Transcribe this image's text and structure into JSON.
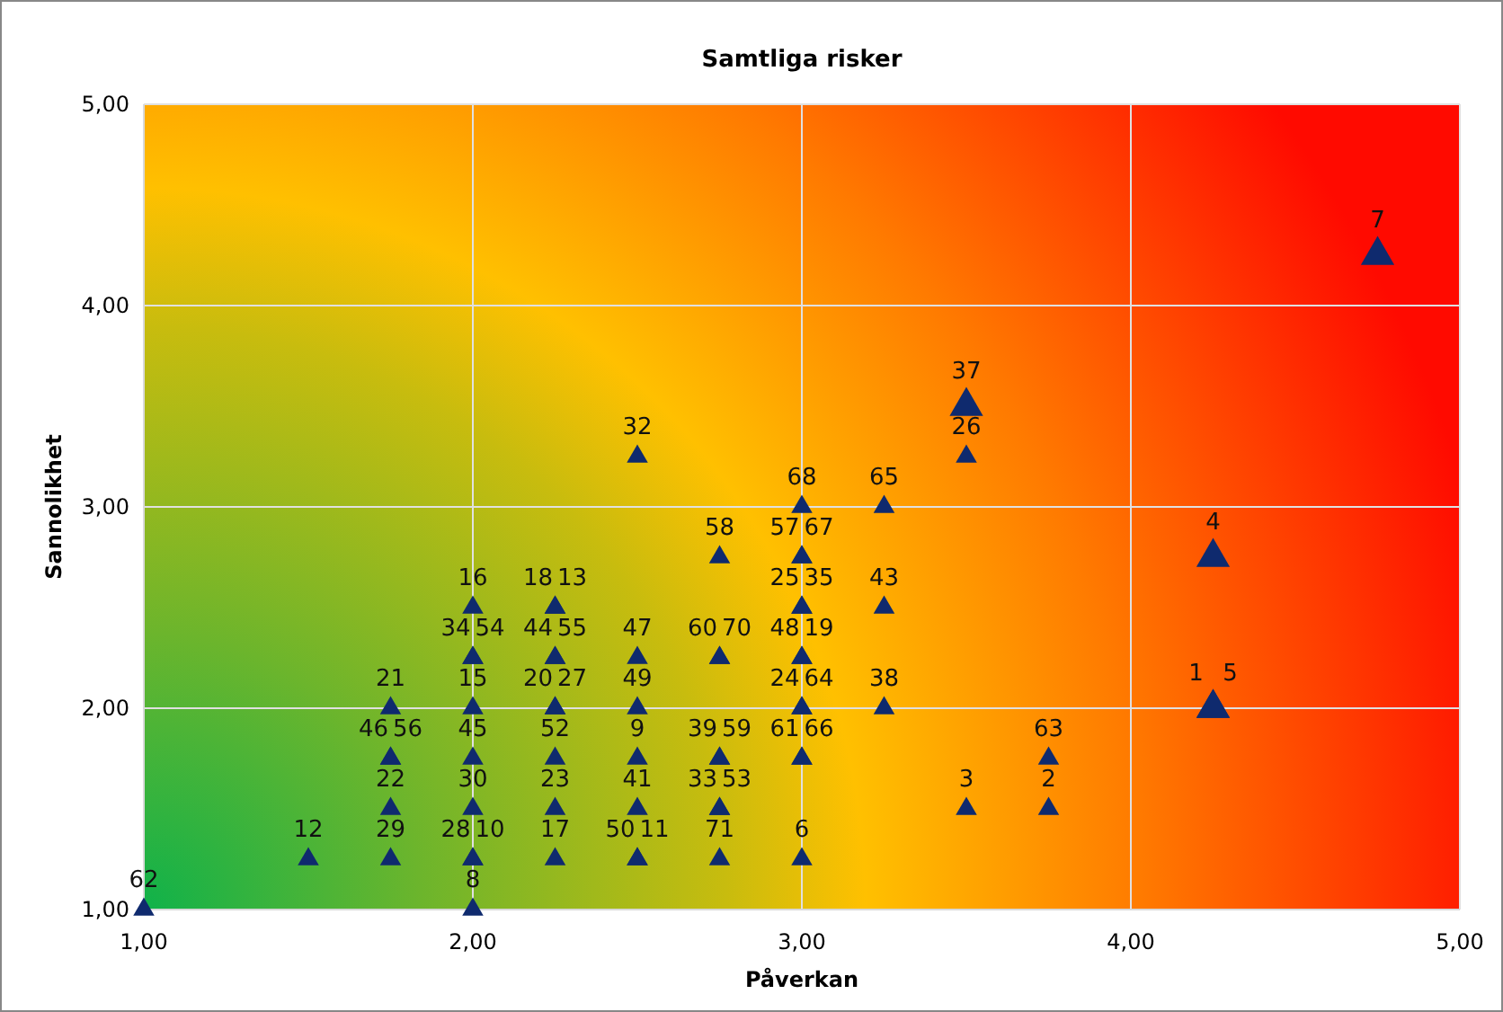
{
  "chart_data": {
    "type": "bubble",
    "title": "Samtliga risker",
    "xlabel": "Påverkan",
    "ylabel": "Sannolikhet",
    "xlim": [
      1,
      5
    ],
    "ylim": [
      1,
      5
    ],
    "xticks": [
      {
        "value": 1,
        "label": "1,00"
      },
      {
        "value": 2,
        "label": "2,00"
      },
      {
        "value": 3,
        "label": "3,00"
      },
      {
        "value": 4,
        "label": "4,00"
      },
      {
        "value": 5,
        "label": "5,00"
      }
    ],
    "yticks": [
      {
        "value": 1,
        "label": "1,00"
      },
      {
        "value": 2,
        "label": "2,00"
      },
      {
        "value": 3,
        "label": "3,00"
      },
      {
        "value": 4,
        "label": "4,00"
      },
      {
        "value": 5,
        "label": "5,00"
      }
    ],
    "grid": true,
    "marker": "triangle",
    "series": [
      {
        "color": "#0f2a6e",
        "x": [
          1,
          1.5,
          1.75,
          1.75,
          1.75,
          1.75,
          1.75,
          2,
          2,
          2,
          2,
          2,
          2,
          2,
          2,
          2,
          2.25,
          2.25,
          2.25,
          2.25,
          2.25,
          2.25,
          2.25,
          2.25,
          2.25,
          2.5,
          2.5,
          2.5,
          2.5,
          2.5,
          2.5,
          2.5,
          2.75,
          2.75,
          2.75,
          2.75,
          2.75,
          2.75,
          2.75,
          2.75,
          3,
          3,
          3,
          3,
          3,
          3,
          3,
          3,
          3,
          3,
          3,
          3,
          3.25,
          3.25,
          3.25,
          3.5,
          3.5,
          3.5,
          3.75,
          3.75,
          4.25,
          4.25,
          4.25,
          4.75
        ],
        "values": [
          1,
          1.25,
          1.25,
          1.5,
          1.75,
          1.75,
          2,
          1,
          1.25,
          1.25,
          1.5,
          1.75,
          2,
          2.25,
          2.25,
          2.5,
          1.25,
          1.5,
          1.75,
          2,
          2,
          2.25,
          2.25,
          2.5,
          2.5,
          1.25,
          1.25,
          1.5,
          1.75,
          2,
          2.25,
          3.25,
          1.25,
          1.5,
          1.5,
          1.75,
          1.75,
          2.25,
          2.25,
          2.75,
          1.25,
          1.75,
          1.75,
          2,
          2,
          2.25,
          2.25,
          2.5,
          2.5,
          2.75,
          2.75,
          3,
          2,
          2.5,
          3,
          1.5,
          3.25,
          3.5,
          1.5,
          1.75,
          2,
          2,
          2.75,
          4.25
        ],
        "sizes": [
          0.4,
          0.4,
          0.4,
          0.4,
          0.4,
          0.4,
          0.4,
          0.4,
          0.4,
          0.4,
          0.4,
          0.4,
          0.4,
          0.4,
          0.4,
          0.4,
          0.4,
          0.4,
          0.4,
          0.4,
          0.4,
          0.4,
          0.4,
          0.4,
          0.4,
          0.4,
          0.4,
          0.4,
          0.4,
          0.4,
          0.4,
          0.4,
          0.4,
          0.4,
          0.4,
          0.4,
          0.4,
          0.4,
          0.4,
          0.4,
          0.4,
          0.4,
          0.4,
          0.4,
          0.4,
          0.4,
          0.4,
          0.4,
          0.4,
          0.4,
          0.4,
          0.4,
          0.4,
          0.4,
          0.4,
          0.4,
          0.4,
          1,
          0.4,
          0.4,
          1,
          1,
          1,
          1
        ]
      }
    ],
    "annotations": [
      {
        "text": "62",
        "x": 1,
        "y": 1
      },
      {
        "text": "12",
        "x": 1.5,
        "y": 1.25
      },
      {
        "text": "29",
        "x": 1.75,
        "y": 1.25
      },
      {
        "text": "22",
        "x": 1.75,
        "y": 1.5
      },
      {
        "text": "46",
        "x": 1.75,
        "y": 1.75
      },
      {
        "text": "56",
        "x": 1.75,
        "y": 1.75
      },
      {
        "text": "21",
        "x": 1.75,
        "y": 2
      },
      {
        "text": "8",
        "x": 2,
        "y": 1
      },
      {
        "text": "28",
        "x": 2,
        "y": 1.25
      },
      {
        "text": "10",
        "x": 2,
        "y": 1.25
      },
      {
        "text": "30",
        "x": 2,
        "y": 1.5
      },
      {
        "text": "45",
        "x": 2,
        "y": 1.75
      },
      {
        "text": "15",
        "x": 2,
        "y": 2
      },
      {
        "text": "34",
        "x": 2,
        "y": 2.25
      },
      {
        "text": "54",
        "x": 2,
        "y": 2.25
      },
      {
        "text": "16",
        "x": 2,
        "y": 2.5
      },
      {
        "text": "17",
        "x": 2.25,
        "y": 1.25
      },
      {
        "text": "23",
        "x": 2.25,
        "y": 1.5
      },
      {
        "text": "52",
        "x": 2.25,
        "y": 1.75
      },
      {
        "text": "20",
        "x": 2.25,
        "y": 2
      },
      {
        "text": "27",
        "x": 2.25,
        "y": 2
      },
      {
        "text": "44",
        "x": 2.25,
        "y": 2.25
      },
      {
        "text": "55",
        "x": 2.25,
        "y": 2.25
      },
      {
        "text": "18",
        "x": 2.25,
        "y": 2.5
      },
      {
        "text": "13",
        "x": 2.25,
        "y": 2.5
      },
      {
        "text": "50",
        "x": 2.5,
        "y": 1.25
      },
      {
        "text": "11",
        "x": 2.5,
        "y": 1.25
      },
      {
        "text": "41",
        "x": 2.5,
        "y": 1.5
      },
      {
        "text": "9",
        "x": 2.5,
        "y": 1.75
      },
      {
        "text": "49",
        "x": 2.5,
        "y": 2
      },
      {
        "text": "47",
        "x": 2.5,
        "y": 2.25
      },
      {
        "text": "32",
        "x": 2.5,
        "y": 3.25
      },
      {
        "text": "71",
        "x": 2.75,
        "y": 1.25
      },
      {
        "text": "33",
        "x": 2.75,
        "y": 1.5
      },
      {
        "text": "53",
        "x": 2.75,
        "y": 1.5
      },
      {
        "text": "39",
        "x": 2.75,
        "y": 1.75
      },
      {
        "text": "59",
        "x": 2.75,
        "y": 1.75
      },
      {
        "text": "60",
        "x": 2.75,
        "y": 2.25
      },
      {
        "text": "70",
        "x": 2.75,
        "y": 2.25
      },
      {
        "text": "58",
        "x": 2.75,
        "y": 2.75
      },
      {
        "text": "6",
        "x": 3,
        "y": 1.25
      },
      {
        "text": "61",
        "x": 3,
        "y": 1.75
      },
      {
        "text": "66",
        "x": 3,
        "y": 1.75
      },
      {
        "text": "24",
        "x": 3,
        "y": 2
      },
      {
        "text": "64",
        "x": 3,
        "y": 2
      },
      {
        "text": "48",
        "x": 3,
        "y": 2.25
      },
      {
        "text": "19",
        "x": 3,
        "y": 2.25
      },
      {
        "text": "25",
        "x": 3,
        "y": 2.5
      },
      {
        "text": "35",
        "x": 3,
        "y": 2.5
      },
      {
        "text": "57",
        "x": 3,
        "y": 2.75
      },
      {
        "text": "67",
        "x": 3,
        "y": 2.75
      },
      {
        "text": "68",
        "x": 3,
        "y": 3
      },
      {
        "text": "38",
        "x": 3.25,
        "y": 2
      },
      {
        "text": "43",
        "x": 3.25,
        "y": 2.5
      },
      {
        "text": "65",
        "x": 3.25,
        "y": 3
      },
      {
        "text": "3",
        "x": 3.5,
        "y": 1.5
      },
      {
        "text": "26",
        "x": 3.5,
        "y": 3.25
      },
      {
        "text": "37",
        "x": 3.5,
        "y": 3.5
      },
      {
        "text": "2",
        "x": 3.75,
        "y": 1.5
      },
      {
        "text": "63",
        "x": 3.75,
        "y": 1.75
      },
      {
        "text": "1",
        "x": 4.25,
        "y": 2
      },
      {
        "text": "5",
        "x": 4.25,
        "y": 2
      },
      {
        "text": "4",
        "x": 4.25,
        "y": 2.75
      },
      {
        "text": "7",
        "x": 4.75,
        "y": 4.25
      }
    ]
  }
}
